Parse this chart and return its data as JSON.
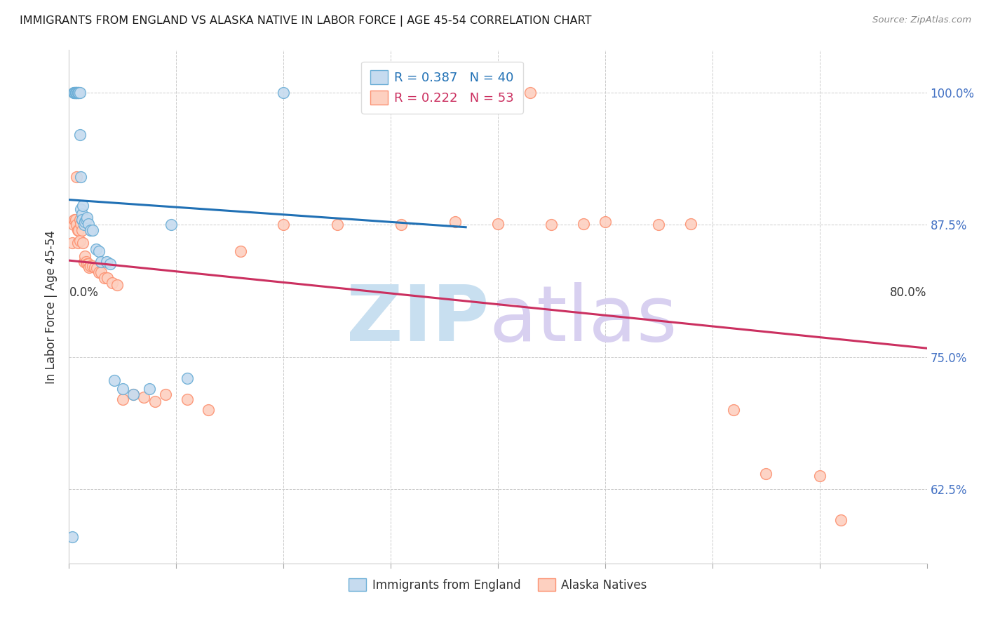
{
  "title": "IMMIGRANTS FROM ENGLAND VS ALASKA NATIVE IN LABOR FORCE | AGE 45-54 CORRELATION CHART",
  "source": "Source: ZipAtlas.com",
  "ylabel": "In Labor Force | Age 45-54",
  "ytick_labels": [
    "62.5%",
    "75.0%",
    "87.5%",
    "100.0%"
  ],
  "ytick_values": [
    0.625,
    0.75,
    0.875,
    1.0
  ],
  "xlim": [
    0.0,
    0.8
  ],
  "ylim": [
    0.555,
    1.04
  ],
  "england_color": "#6baed6",
  "alaska_color": "#fc9272",
  "england_fill_color": "#c6dbef",
  "alaska_fill_color": "#fdd0c0",
  "england_line_color": "#2171b5",
  "alaska_line_color": "#cb3060",
  "background_color": "#ffffff",
  "england_x": [
    0.003,
    0.004,
    0.005,
    0.005,
    0.006,
    0.006,
    0.006,
    0.007,
    0.007,
    0.008,
    0.008,
    0.009,
    0.009,
    0.01,
    0.01,
    0.011,
    0.011,
    0.012,
    0.012,
    0.013,
    0.014,
    0.015,
    0.016,
    0.017,
    0.018,
    0.02,
    0.022,
    0.025,
    0.028,
    0.03,
    0.035,
    0.038,
    0.042,
    0.05,
    0.06,
    0.075,
    0.095,
    0.11,
    0.2,
    0.31
  ],
  "england_y": [
    0.58,
    1.0,
    1.0,
    1.0,
    1.0,
    1.0,
    1.0,
    1.0,
    1.0,
    1.0,
    1.0,
    1.0,
    1.0,
    1.0,
    0.96,
    0.92,
    0.89,
    0.885,
    0.88,
    0.893,
    0.875,
    0.878,
    0.88,
    0.882,
    0.876,
    0.87,
    0.87,
    0.852,
    0.85,
    0.84,
    0.84,
    0.838,
    0.728,
    0.72,
    0.715,
    0.72,
    0.875,
    0.73,
    1.0,
    1.0
  ],
  "alaska_x": [
    0.003,
    0.004,
    0.005,
    0.006,
    0.007,
    0.007,
    0.008,
    0.008,
    0.009,
    0.01,
    0.01,
    0.011,
    0.012,
    0.013,
    0.014,
    0.015,
    0.016,
    0.017,
    0.018,
    0.019,
    0.02,
    0.022,
    0.024,
    0.026,
    0.028,
    0.03,
    0.033,
    0.036,
    0.04,
    0.045,
    0.05,
    0.06,
    0.07,
    0.08,
    0.09,
    0.11,
    0.13,
    0.16,
    0.2,
    0.25,
    0.31,
    0.36,
    0.4,
    0.45,
    0.48,
    0.5,
    0.55,
    0.58,
    0.62,
    0.65,
    0.7,
    0.72,
    0.43
  ],
  "alaska_y": [
    0.858,
    0.875,
    0.88,
    0.88,
    0.875,
    0.92,
    0.858,
    0.87,
    0.87,
    0.86,
    0.88,
    0.876,
    0.87,
    0.858,
    0.84,
    0.845,
    0.84,
    0.838,
    0.838,
    0.835,
    0.836,
    0.836,
    0.835,
    0.834,
    0.83,
    0.83,
    0.825,
    0.825,
    0.82,
    0.818,
    0.71,
    0.715,
    0.712,
    0.708,
    0.715,
    0.71,
    0.7,
    0.85,
    0.875,
    0.875,
    0.875,
    0.878,
    0.876,
    0.875,
    0.876,
    0.878,
    0.875,
    0.876,
    0.7,
    0.64,
    0.638,
    0.596,
    1.0
  ]
}
